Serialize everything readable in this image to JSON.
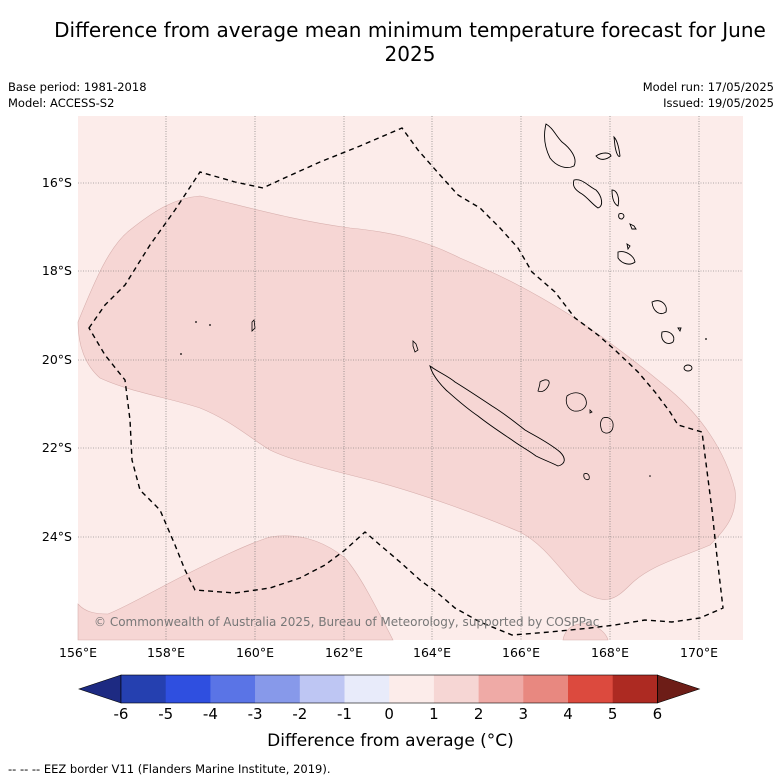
{
  "title": "Difference from average mean minimum temperature forecast for June 2025",
  "base_period": "Base period: 1981-2018",
  "model": "Model: ACCESS-S2",
  "model_run": "Model run: 17/05/2025",
  "issued": "Issued: 19/05/2025",
  "copyright": "© Commonwealth of Australia 2025, Bureau of Meteorology, supported by COSPPac",
  "lat_labels": [
    "16°S",
    "18°S",
    "20°S",
    "22°S",
    "24°S"
  ],
  "lon_labels": [
    "156°E",
    "158°E",
    "160°E",
    "162°E",
    "164°E",
    "166°E",
    "168°E",
    "170°E"
  ],
  "colorbar": {
    "title": "Difference from average (°C)",
    "ticks": [
      "-6",
      "-5",
      "-4",
      "-3",
      "-2",
      "-1",
      "0",
      "1",
      "2",
      "3",
      "4",
      "5",
      "6"
    ],
    "colors": [
      "#1d2a82",
      "#2540b0",
      "#2f4fe0",
      "#5a74e6",
      "#8799ea",
      "#bec6f3",
      "#e8ebfa",
      "#fcecea",
      "#f6d6d4",
      "#efaaa6",
      "#e88880",
      "#dc4a3e",
      "#ad2a22",
      "#6d1d17"
    ]
  },
  "legend_note": "-- -- -- EEZ border V11 (Flanders Marine Institute, 2019).",
  "colors": {
    "background_anomaly_0_1": "#fcecea",
    "anomaly_1_2": "#f6d6d4",
    "gridline": "#555555"
  }
}
